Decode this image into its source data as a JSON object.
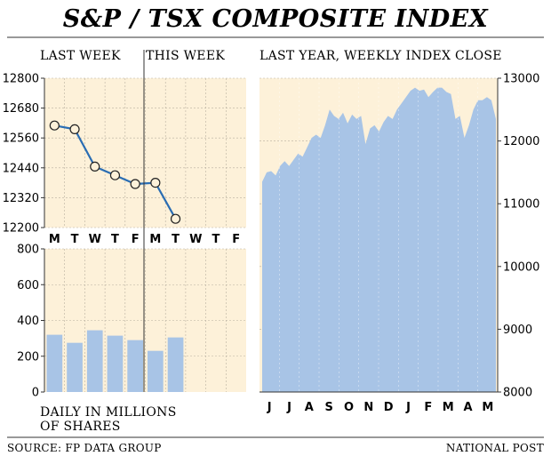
{
  "header": {
    "title": "S&P / TSX COMPOSITE INDEX",
    "last_week": "LAST WEEK",
    "this_week": "THIS WEEK",
    "last_year": "LAST YEAR, WEEKLY INDEX CLOSE"
  },
  "footer": {
    "source": "SOURCE: FP DATA GROUP",
    "credit": "NATIONAL POST"
  },
  "colors": {
    "panel_bg": "#fdf1d9",
    "line": "#2a6db3",
    "bar": "#a8c4e6",
    "area": "#a8c4e6",
    "grid": "#b8b0a0",
    "text": "#222222"
  },
  "chart_data": [
    {
      "type": "line",
      "x": [
        "M",
        "T",
        "W",
        "T",
        "F",
        "M",
        "T",
        "W",
        "T",
        "F"
      ],
      "series": [
        {
          "values": [
            12610,
            12595,
            12445,
            12410,
            12375,
            12380,
            12235,
            null,
            null,
            null
          ]
        }
      ],
      "ylim": [
        12200,
        12800
      ],
      "yticks": [
        12200,
        12320,
        12440,
        12560,
        12680,
        12800
      ],
      "split_after_index": 4,
      "grid": true
    },
    {
      "type": "bar",
      "categories": [
        "M",
        "T",
        "W",
        "T",
        "F",
        "M",
        "T",
        "W",
        "T",
        "F"
      ],
      "values": [
        320,
        275,
        345,
        315,
        290,
        230,
        305,
        null,
        null,
        null
      ],
      "ylim": [
        0,
        800
      ],
      "yticks": [
        0,
        200,
        400,
        600,
        800
      ],
      "ylabel": "DAILY IN MILLIONS OF SHARES",
      "grid": true
    },
    {
      "type": "area",
      "x_month_labels": [
        "J",
        "J",
        "A",
        "S",
        "O",
        "N",
        "D",
        "J",
        "F",
        "M",
        "A",
        "M"
      ],
      "values": [
        11350,
        11500,
        11520,
        11450,
        11600,
        11680,
        11600,
        11700,
        11800,
        11750,
        11900,
        12050,
        12100,
        12050,
        12250,
        12500,
        12400,
        12350,
        12450,
        12280,
        12420,
        12350,
        12400,
        11950,
        12200,
        12250,
        12150,
        12300,
        12400,
        12350,
        12500,
        12600,
        12700,
        12800,
        12850,
        12800,
        12820,
        12700,
        12780,
        12850,
        12850,
        12780,
        12750,
        12350,
        12400,
        12050,
        12250,
        12500,
        12650,
        12650,
        12700,
        12650,
        12350
      ],
      "ylim": [
        8000,
        13000
      ],
      "yticks": [
        8000,
        9000,
        10000,
        11000,
        12000,
        13000
      ],
      "grid": true
    }
  ]
}
